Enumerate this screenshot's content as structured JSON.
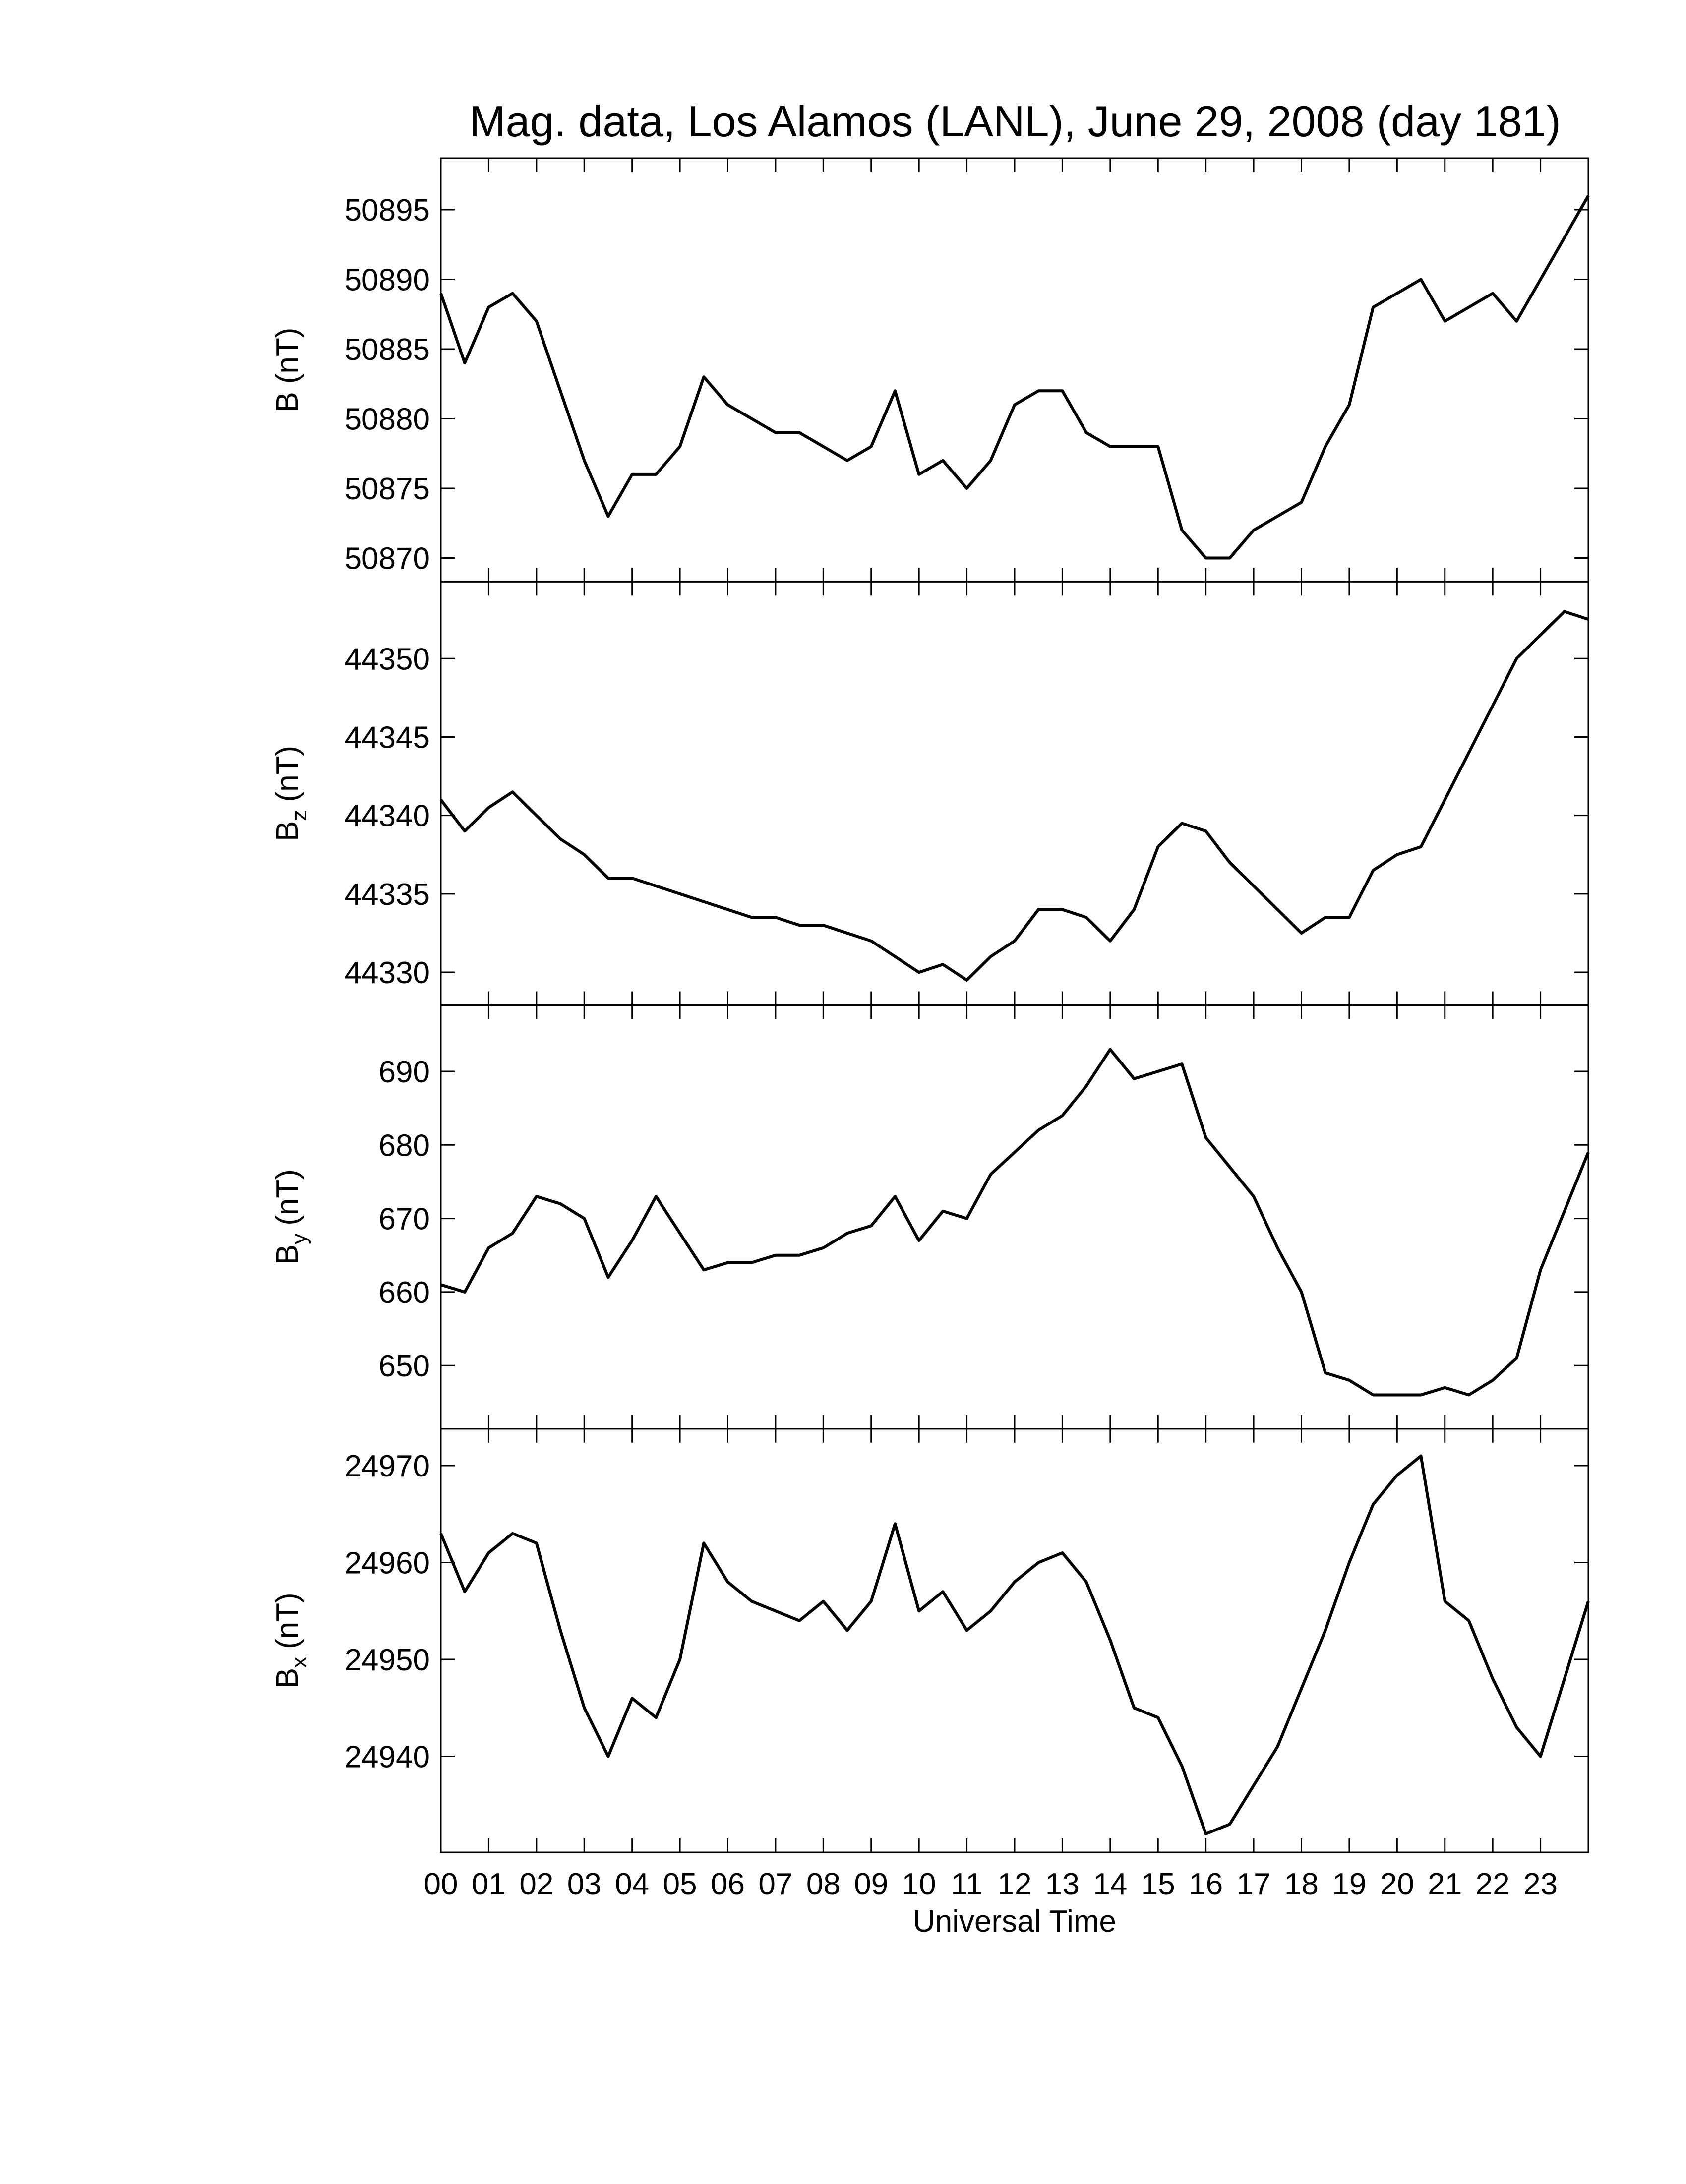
{
  "chart_data": [
    {
      "type": "line",
      "title": "Mag. data, Los Alamos (LANL), June 29, 2008 (day 181)",
      "ylabel": "B",
      "ylabel_unit": "(nT)",
      "color": "#000000",
      "x": [
        0,
        0.5,
        1,
        1.5,
        2,
        2.5,
        3,
        3.5,
        4,
        4.5,
        5,
        5.5,
        6,
        6.5,
        7,
        7.5,
        8,
        8.5,
        9,
        9.5,
        10,
        10.5,
        11,
        11.5,
        12,
        12.5,
        13,
        13.5,
        14,
        14.5,
        15,
        15.5,
        16,
        16.5,
        17,
        17.5,
        18,
        18.5,
        19,
        19.5,
        20,
        20.5,
        21,
        21.5,
        22,
        22.5,
        23,
        23.5,
        24
      ],
      "values": [
        50889,
        50884,
        50888,
        50889,
        50887,
        50882,
        50877,
        50873,
        50876,
        50876,
        50878,
        50883,
        50881,
        50880,
        50879,
        50879,
        50878,
        50877,
        50878,
        50882,
        50876,
        50877,
        50875,
        50877,
        50881,
        50882,
        50882,
        50879,
        50878,
        50878,
        50878,
        50872,
        50870,
        50870,
        50872,
        50873,
        50874,
        50878,
        50881,
        50888,
        50889,
        50890,
        50887,
        50888,
        50889,
        50887,
        50890,
        50893,
        50896
      ],
      "xlim": [
        0,
        24
      ],
      "xticks": [
        0,
        1,
        2,
        3,
        4,
        5,
        6,
        7,
        8,
        9,
        10,
        11,
        12,
        13,
        14,
        15,
        16,
        17,
        18,
        19,
        20,
        21,
        22,
        23
      ],
      "ylim": [
        50868.3,
        50898.7
      ],
      "yticks": [
        50870,
        50875,
        50880,
        50885,
        50890,
        50895
      ]
    },
    {
      "type": "line",
      "ylabel": "B",
      "ylabel_sub": "z",
      "ylabel_unit": "(nT)",
      "color": "#000000",
      "x": [
        0,
        0.5,
        1,
        1.5,
        2,
        2.5,
        3,
        3.5,
        4,
        4.5,
        5,
        5.5,
        6,
        6.5,
        7,
        7.5,
        8,
        8.5,
        9,
        9.5,
        10,
        10.5,
        11,
        11.5,
        12,
        12.5,
        13,
        13.5,
        14,
        14.5,
        15,
        15.5,
        16,
        16.5,
        17,
        17.5,
        18,
        18.5,
        19,
        19.5,
        20,
        20.5,
        21,
        21.5,
        22,
        22.5,
        23,
        23.5,
        24
      ],
      "values": [
        44341,
        44339,
        44340.5,
        44341.5,
        44340,
        44338.5,
        44337.5,
        44336,
        44336,
        44335.5,
        44335,
        44334.5,
        44334,
        44333.5,
        44333.5,
        44333,
        44333,
        44332.5,
        44332,
        44331,
        44330,
        44330.5,
        44329.5,
        44331,
        44332,
        44334,
        44334,
        44333.5,
        44332,
        44334,
        44338,
        44339.5,
        44339,
        44337,
        44335.5,
        44334,
        44332.5,
        44333.5,
        44333.5,
        44336.5,
        44337.5,
        44338,
        44341,
        44344,
        44347,
        44350,
        44351.5,
        44353,
        44352.5
      ],
      "xlim": [
        0,
        24
      ],
      "xticks": [
        0,
        1,
        2,
        3,
        4,
        5,
        6,
        7,
        8,
        9,
        10,
        11,
        12,
        13,
        14,
        15,
        16,
        17,
        18,
        19,
        20,
        21,
        22,
        23
      ],
      "ylim": [
        44327.9,
        44354.9
      ],
      "yticks": [
        44330,
        44335,
        44340,
        44345,
        44350
      ]
    },
    {
      "type": "line",
      "ylabel": "B",
      "ylabel_sub": "y",
      "ylabel_unit": "(nT)",
      "color": "#000000",
      "x": [
        0,
        0.5,
        1,
        1.5,
        2,
        2.5,
        3,
        3.5,
        4,
        4.5,
        5,
        5.5,
        6,
        6.5,
        7,
        7.5,
        8,
        8.5,
        9,
        9.5,
        10,
        10.5,
        11,
        11.5,
        12,
        12.5,
        13,
        13.5,
        14,
        14.5,
        15,
        15.5,
        16,
        16.5,
        17,
        17.5,
        18,
        18.5,
        19,
        19.5,
        20,
        20.5,
        21,
        21.5,
        22,
        22.5,
        23,
        23.5,
        24
      ],
      "values": [
        661,
        660,
        666,
        668,
        673,
        672,
        670,
        662,
        667,
        673,
        668,
        663,
        664,
        664,
        665,
        665,
        666,
        668,
        669,
        673,
        667,
        671,
        670,
        676,
        679,
        682,
        684,
        688,
        693,
        689,
        690,
        691,
        681,
        677,
        673,
        666,
        660,
        649,
        648,
        646,
        646,
        646,
        647,
        646,
        648,
        651,
        663,
        671,
        679
      ],
      "xlim": [
        0,
        24
      ],
      "xticks": [
        0,
        1,
        2,
        3,
        4,
        5,
        6,
        7,
        8,
        9,
        10,
        11,
        12,
        13,
        14,
        15,
        16,
        17,
        18,
        19,
        20,
        21,
        22,
        23
      ],
      "ylim": [
        641.4,
        699.0
      ],
      "yticks": [
        650,
        660,
        670,
        680,
        690
      ]
    },
    {
      "type": "line",
      "ylabel": "B",
      "ylabel_sub": "x",
      "ylabel_unit": "(nT)",
      "xlabel": "Universal Time",
      "color": "#000000",
      "x": [
        0,
        0.5,
        1,
        1.5,
        2,
        2.5,
        3,
        3.5,
        4,
        4.5,
        5,
        5.5,
        6,
        6.5,
        7,
        7.5,
        8,
        8.5,
        9,
        9.5,
        10,
        10.5,
        11,
        11.5,
        12,
        12.5,
        13,
        13.5,
        14,
        14.5,
        15,
        15.5,
        16,
        16.5,
        17,
        17.5,
        18,
        18.5,
        19,
        19.5,
        20,
        20.5,
        21,
        21.5,
        22,
        22.5,
        23,
        23.5,
        24
      ],
      "values": [
        24963,
        24957,
        24961,
        24963,
        24962,
        24953,
        24945,
        24940,
        24946,
        24944,
        24950,
        24962,
        24958,
        24956,
        24955,
        24954,
        24956,
        24953,
        24956,
        24964,
        24955,
        24957,
        24953,
        24955,
        24958,
        24960,
        24961,
        24958,
        24952,
        24945,
        24944,
        24939,
        24932,
        24933,
        24937,
        24941,
        24947,
        24953,
        24960,
        24966,
        24969,
        24971,
        24956,
        24954,
        24948,
        24943,
        24940,
        24948,
        24956
      ],
      "xlim": [
        0,
        24
      ],
      "xticks": [
        {
          "value": 0,
          "label": "00"
        },
        {
          "value": 1,
          "label": "01"
        },
        {
          "value": 2,
          "label": "02"
        },
        {
          "value": 3,
          "label": "03"
        },
        {
          "value": 4,
          "label": "04"
        },
        {
          "value": 5,
          "label": "05"
        },
        {
          "value": 6,
          "label": "06"
        },
        {
          "value": 7,
          "label": "07"
        },
        {
          "value": 8,
          "label": "08"
        },
        {
          "value": 9,
          "label": "09"
        },
        {
          "value": 10,
          "label": "10"
        },
        {
          "value": 11,
          "label": "11"
        },
        {
          "value": 12,
          "label": "12"
        },
        {
          "value": 13,
          "label": "13"
        },
        {
          "value": 14,
          "label": "14"
        },
        {
          "value": 15,
          "label": "15"
        },
        {
          "value": 16,
          "label": "16"
        },
        {
          "value": 17,
          "label": "17"
        },
        {
          "value": 18,
          "label": "18"
        },
        {
          "value": 19,
          "label": "19"
        },
        {
          "value": 20,
          "label": "20"
        },
        {
          "value": 21,
          "label": "21"
        },
        {
          "value": 22,
          "label": "22"
        },
        {
          "value": 23,
          "label": "23"
        }
      ],
      "ylim": [
        24930.1,
        24973.8
      ],
      "yticks": [
        24940,
        24950,
        24960,
        24970
      ]
    }
  ]
}
